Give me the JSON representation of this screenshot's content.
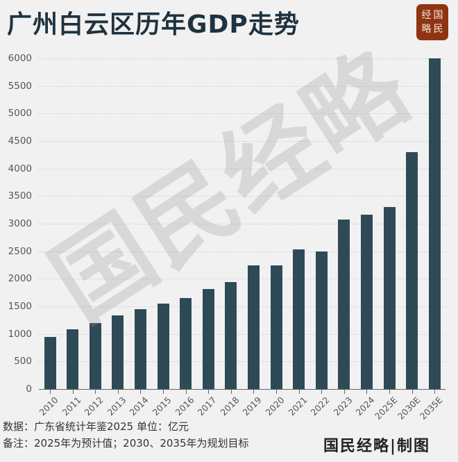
{
  "header": {
    "title": "广州白云区历年GDP走势",
    "logo": [
      "经",
      "国",
      "略",
      "民"
    ]
  },
  "watermark": "国民经略",
  "colors": {
    "background": "#f1f1f1",
    "bar": "#2f4a57",
    "title": "#1f3240",
    "logo_bg": "#8f3413"
  },
  "chart_data": {
    "type": "bar",
    "title": "广州白云区历年GDP走势",
    "xlabel": "",
    "ylabel": "",
    "unit": "亿元",
    "ylim": [
      0,
      6000
    ],
    "yticks": [
      0,
      500,
      1000,
      1500,
      2000,
      2500,
      3000,
      3500,
      4000,
      4500,
      5000,
      5500,
      6000
    ],
    "grid": true,
    "legend": null,
    "categories": [
      "2010",
      "2011",
      "2012",
      "2013",
      "2014",
      "2015",
      "2016",
      "2017",
      "2018",
      "2019",
      "2020",
      "2021",
      "2022",
      "2023",
      "2024",
      "2025E",
      "2030E",
      "2035E"
    ],
    "values": [
      940,
      1080,
      1195,
      1335,
      1445,
      1545,
      1650,
      1815,
      1940,
      2240,
      2250,
      2530,
      2500,
      3070,
      3160,
      3300,
      4300,
      6000
    ]
  },
  "footer": {
    "source": "数据：广东省统计年鉴2025  单位：亿元",
    "note": "备注：2025年为预计值；2030、2035年为规划目标",
    "brand": "国民经略|制图"
  }
}
